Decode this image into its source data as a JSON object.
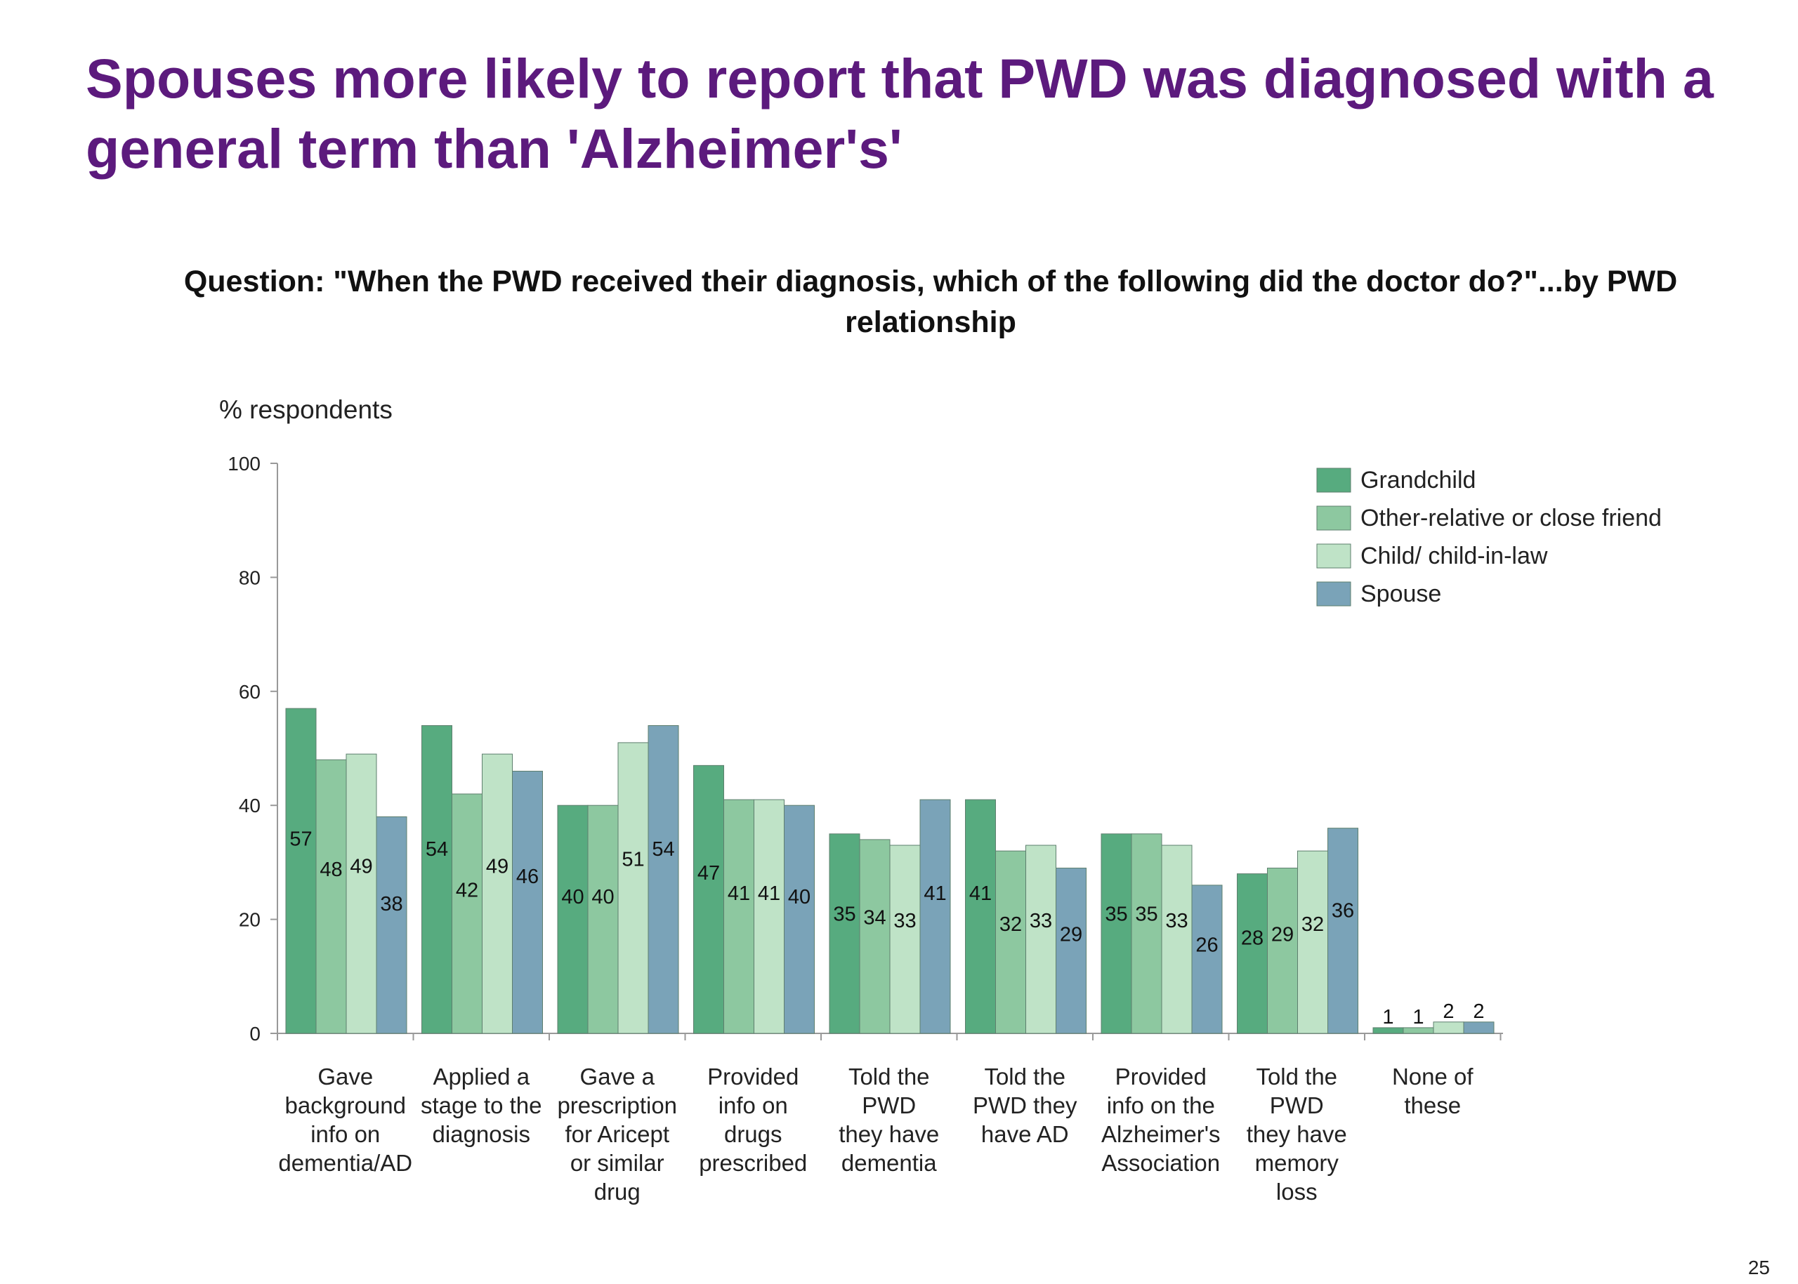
{
  "slide": {
    "title": "Spouses more likely to report that PWD was diagnosed with a general term than 'Alzheimer's'",
    "question": "Question: \"When the PWD received their diagnosis, which of the following did the doctor do?\"...by PWD relationship",
    "page_number": "25"
  },
  "chart_data": {
    "type": "bar",
    "ylabel": "% respondents",
    "xlabel": "",
    "ylim": [
      0,
      100
    ],
    "yticks": [
      0,
      20,
      40,
      60,
      80,
      100
    ],
    "grid": false,
    "legend_position": "top-right",
    "categories": [
      [
        "Gave",
        "background",
        "info on",
        "dementia/AD"
      ],
      [
        "Applied a",
        "stage to the",
        "diagnosis"
      ],
      [
        "Gave a",
        "prescription",
        "for Aricept",
        "or similar",
        "drug"
      ],
      [
        "Provided",
        "info on",
        "drugs",
        "prescribed"
      ],
      [
        "Told the",
        "PWD",
        "they have",
        "dementia"
      ],
      [
        "Told the",
        "PWD they",
        "have AD"
      ],
      [
        "Provided",
        "info on the",
        "Alzheimer's",
        "Association"
      ],
      [
        "Told the",
        "PWD",
        "they have",
        "memory",
        "loss"
      ],
      [
        "None of",
        "these"
      ]
    ],
    "series": [
      {
        "name": "Grandchild",
        "color": "#57ab7f",
        "values": [
          57,
          54,
          40,
          47,
          35,
          41,
          35,
          28,
          1
        ]
      },
      {
        "name": "Other-relative or close friend",
        "color": "#8dc8a0",
        "values": [
          48,
          42,
          40,
          41,
          34,
          32,
          35,
          29,
          1
        ]
      },
      {
        "name": "Child/ child-in-law",
        "color": "#bfe3c7",
        "values": [
          49,
          49,
          51,
          41,
          33,
          33,
          33,
          32,
          2
        ]
      },
      {
        "name": "Spouse",
        "color": "#7aa3b8",
        "values": [
          38,
          46,
          54,
          40,
          41,
          29,
          26,
          36,
          2
        ]
      }
    ]
  }
}
